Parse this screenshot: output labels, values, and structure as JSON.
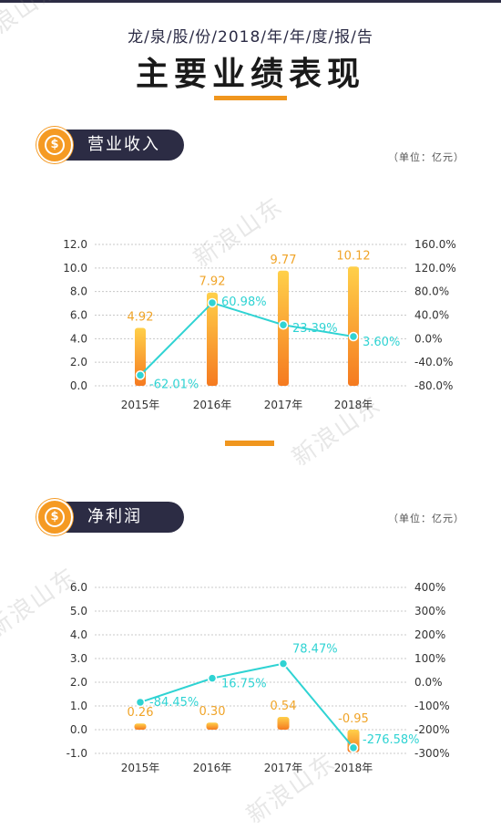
{
  "header": {
    "subtitle": "龙/泉/股/份/2018/年/年/度/报/告",
    "title": "主要业绩表现"
  },
  "watermark_text": "新浪山东",
  "sections": [
    {
      "label": "营业收入",
      "unit": "（单位：亿元）",
      "icon": "dollar-coin-icon"
    },
    {
      "label": "净利润",
      "unit": "（单位：亿元）",
      "icon": "dollar-coin-icon"
    }
  ],
  "colors": {
    "bar_top": "#ffd04a",
    "bar_bottom": "#f57a20",
    "value_label": "#f0a428",
    "line": "#2fd3d3",
    "header_bg": "#2c2c44",
    "accent": "#f0961e"
  },
  "chart_data": [
    {
      "type": "bar",
      "categories": [
        "2015年",
        "2016年",
        "2017年",
        "2018年"
      ],
      "series": [
        {
          "values": [
            4.92,
            7.92,
            9.77,
            10.12
          ],
          "axis": "left",
          "labels": [
            "4.92",
            "7.92",
            "9.77",
            "10.12"
          ]
        },
        {
          "type": "line",
          "values": [
            -62.01,
            60.98,
            23.39,
            3.6
          ],
          "axis": "right",
          "labels": [
            "-62.01%",
            "60.98%",
            "23.39%",
            "3.60%"
          ]
        }
      ],
      "y_left": {
        "ticks": [
          "0.0",
          "2.0",
          "4.0",
          "6.0",
          "8.0",
          "10.0",
          "12.0"
        ],
        "range": [
          0,
          12
        ]
      },
      "y_right": {
        "ticks": [
          "-80.0%",
          "-40.0%",
          "0.0%",
          "40.0%",
          "80.0%",
          "120.0%",
          "160.0%"
        ],
        "range": [
          -80,
          160
        ]
      },
      "grid": true,
      "legend": "none"
    },
    {
      "type": "bar",
      "categories": [
        "2015年",
        "2016年",
        "2017年",
        "2018年"
      ],
      "series": [
        {
          "values": [
            0.26,
            0.3,
            0.54,
            -0.95
          ],
          "axis": "left",
          "labels": [
            "0.26",
            "0.30",
            "0.54",
            "-0.95"
          ]
        },
        {
          "type": "line",
          "values": [
            -84.45,
            16.75,
            78.47,
            -276.58
          ],
          "axis": "right",
          "labels": [
            "-84.45%",
            "16.75%",
            "78.47%",
            "-276.58%"
          ]
        }
      ],
      "y_left": {
        "ticks": [
          "-1.0",
          "0.0",
          "1.0",
          "2.0",
          "3.0",
          "4.0",
          "5.0",
          "6.0"
        ],
        "range": [
          -1,
          6
        ]
      },
      "y_right": {
        "ticks": [
          "-300%",
          "-200%",
          "-100%",
          "0.0%",
          "100%",
          "200%",
          "300%",
          "400%"
        ],
        "range": [
          -300,
          400
        ]
      },
      "grid": true,
      "legend": "none"
    }
  ]
}
